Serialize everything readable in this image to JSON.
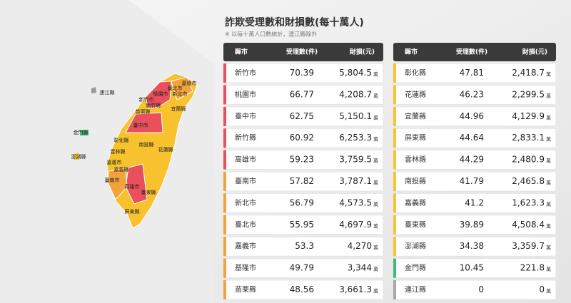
{
  "header": {
    "title": "詐欺受理數和財損數(每十萬人)",
    "note": "※ 以每十萬人口數統計，連江縣除外"
  },
  "table": {
    "headers": [
      "縣市",
      "受理數(件)",
      "財損(元)"
    ],
    "unit": "萬",
    "columns": [
      {
        "rows": [
          {
            "county": "新竹市",
            "cases": "70.39",
            "loss": "5,804.5",
            "color": "#e9505c"
          },
          {
            "county": "桃園市",
            "cases": "66.77",
            "loss": "4,208.7",
            "color": "#e9505c"
          },
          {
            "county": "臺中市",
            "cases": "62.75",
            "loss": "5,150.1",
            "color": "#e9505c"
          },
          {
            "county": "新竹縣",
            "cases": "60.92",
            "loss": "6,253.3",
            "color": "#e9505c"
          },
          {
            "county": "高雄市",
            "cases": "59.23",
            "loss": "3,759.5",
            "color": "#e9505c"
          },
          {
            "county": "臺南市",
            "cases": "57.82",
            "loss": "3,787.1",
            "color": "#f2a33a"
          },
          {
            "county": "新北市",
            "cases": "56.79",
            "loss": "4,573.5",
            "color": "#f2a33a"
          },
          {
            "county": "臺北市",
            "cases": "55.95",
            "loss": "4,697.9",
            "color": "#f2a33a"
          },
          {
            "county": "嘉義市",
            "cases": "53.3",
            "loss": "4,270",
            "color": "#f2a33a"
          },
          {
            "county": "基隆市",
            "cases": "49.79",
            "loss": "3,344",
            "color": "#f2a33a"
          },
          {
            "county": "苗栗縣",
            "cases": "48.56",
            "loss": "3,661.3",
            "color": "#f2a33a"
          }
        ]
      },
      {
        "rows": [
          {
            "county": "彰化縣",
            "cases": "47.81",
            "loss": "2,418.7",
            "color": "#f7c531"
          },
          {
            "county": "花蓮縣",
            "cases": "46.23",
            "loss": "2,299.5",
            "color": "#f7c531"
          },
          {
            "county": "宜蘭縣",
            "cases": "44.96",
            "loss": "4,129.9",
            "color": "#f7c531"
          },
          {
            "county": "屏東縣",
            "cases": "44.64",
            "loss": "2,833.1",
            "color": "#f7c531"
          },
          {
            "county": "雲林縣",
            "cases": "44.29",
            "loss": "2,480.9",
            "color": "#f7c531"
          },
          {
            "county": "南投縣",
            "cases": "41.79",
            "loss": "2,465.8",
            "color": "#f7c531"
          },
          {
            "county": "嘉義縣",
            "cases": "41.2",
            "loss": "1,623.3",
            "color": "#f7c531"
          },
          {
            "county": "臺東縣",
            "cases": "39.89",
            "loss": "4,508.4",
            "color": "#f7c531"
          },
          {
            "county": "澎湖縣",
            "cases": "34.38",
            "loss": "3,359.7",
            "color": "#f7c531"
          },
          {
            "county": "金門縣",
            "cases": "10.45",
            "loss": "221.8",
            "color": "#3dba7e"
          },
          {
            "county": "連江縣",
            "cases": "0",
            "loss": "0",
            "color": "#a8a8a8"
          }
        ]
      }
    ]
  },
  "map": {
    "labels": [
      "基隆市",
      "臺北市",
      "桃園市",
      "新北市",
      "新竹市",
      "新竹縣",
      "苗栗縣",
      "宜蘭縣",
      "臺中市",
      "彰化縣",
      "南投縣",
      "雲林縣",
      "花蓮縣",
      "嘉義市",
      "嘉義縣",
      "臺南市",
      "高雄市",
      "臺東縣",
      "屏東縣",
      "連江縣",
      "金門縣",
      "澎湖縣"
    ]
  }
}
